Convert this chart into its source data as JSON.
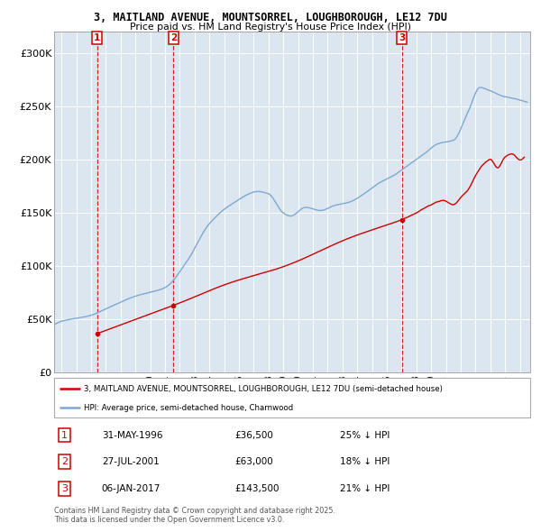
{
  "title1": "3, MAITLAND AVENUE, MOUNTSORREL, LOUGHBOROUGH, LE12 7DU",
  "title2": "Price paid vs. HM Land Registry's House Price Index (HPI)",
  "background_color": "#ffffff",
  "plot_bg_color": "#dce6f1",
  "grid_color": "#ffffff",
  "sale_color": "#cc0000",
  "hpi_color": "#7fa8d0",
  "purchases": [
    {
      "date_num": 1996.42,
      "price": 36500,
      "label": "1"
    },
    {
      "date_num": 2001.57,
      "price": 63000,
      "label": "2"
    },
    {
      "date_num": 2017.02,
      "price": 143500,
      "label": "3"
    }
  ],
  "legend1": "3, MAITLAND AVENUE, MOUNTSORREL, LOUGHBOROUGH, LE12 7DU (semi-detached house)",
  "legend2": "HPI: Average price, semi-detached house, Charnwood",
  "table_entries": [
    {
      "label": "1",
      "date": "31-MAY-1996",
      "price": "£36,500",
      "pct": "25% ↓ HPI"
    },
    {
      "label": "2",
      "date": "27-JUL-2001",
      "price": "£63,000",
      "pct": "18% ↓ HPI"
    },
    {
      "label": "3",
      "date": "06-JAN-2017",
      "price": "£143,500",
      "pct": "21% ↓ HPI"
    }
  ],
  "footnote": "Contains HM Land Registry data © Crown copyright and database right 2025.\nThis data is licensed under the Open Government Licence v3.0.",
  "ylim": [
    0,
    320000
  ],
  "yticks": [
    0,
    50000,
    100000,
    150000,
    200000,
    250000,
    300000
  ],
  "ytick_labels": [
    "£0",
    "£50K",
    "£100K",
    "£150K",
    "£200K",
    "£250K",
    "£300K"
  ],
  "xlim_start": 1993.5,
  "xlim_end": 2025.7
}
